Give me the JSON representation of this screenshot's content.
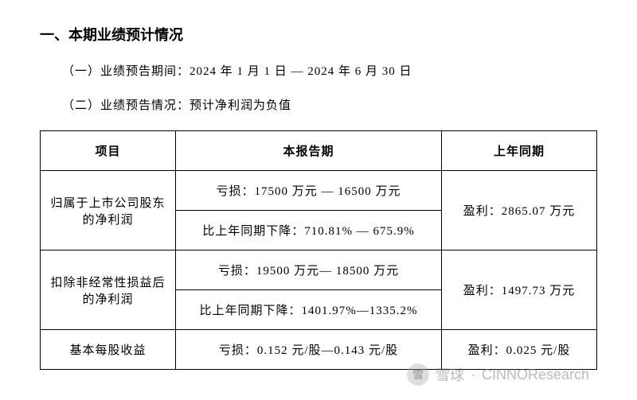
{
  "heading": "一、本期业绩预计情况",
  "line1": "（一）业绩预告期间：2024 年 1 月 1 日 — 2024 年 6 月 30 日",
  "line2": "（二）业绩预告情况：预计净利润为负值",
  "table": {
    "headers": [
      "项目",
      "本报告期",
      "上年同期"
    ],
    "rows": [
      {
        "label": "归属于上市公司股东的净利润",
        "mid_top": "亏损：17500 万元 — 16500 万元",
        "mid_bot": "比上年同期下降：710.81% — 675.9%",
        "right": "盈利：2865.07 万元"
      },
      {
        "label": "扣除非经常性损益后的净利润",
        "mid_top": "亏损：19500 万元— 18500 万元",
        "mid_bot": "比上年同期下降：1401.97%—1335.2%",
        "right": "盈利：1497.73 万元"
      },
      {
        "label": "基本每股收益",
        "mid": "亏损：0.152 元/股—0.143 元/股",
        "right": "盈利：0.025 元/股"
      }
    ],
    "border_color": "#000000",
    "background_color": "#ffffff",
    "font_size": 15
  },
  "watermark": {
    "logo_text": "雪",
    "brand": "雪球",
    "author": "CINNOResearch"
  }
}
